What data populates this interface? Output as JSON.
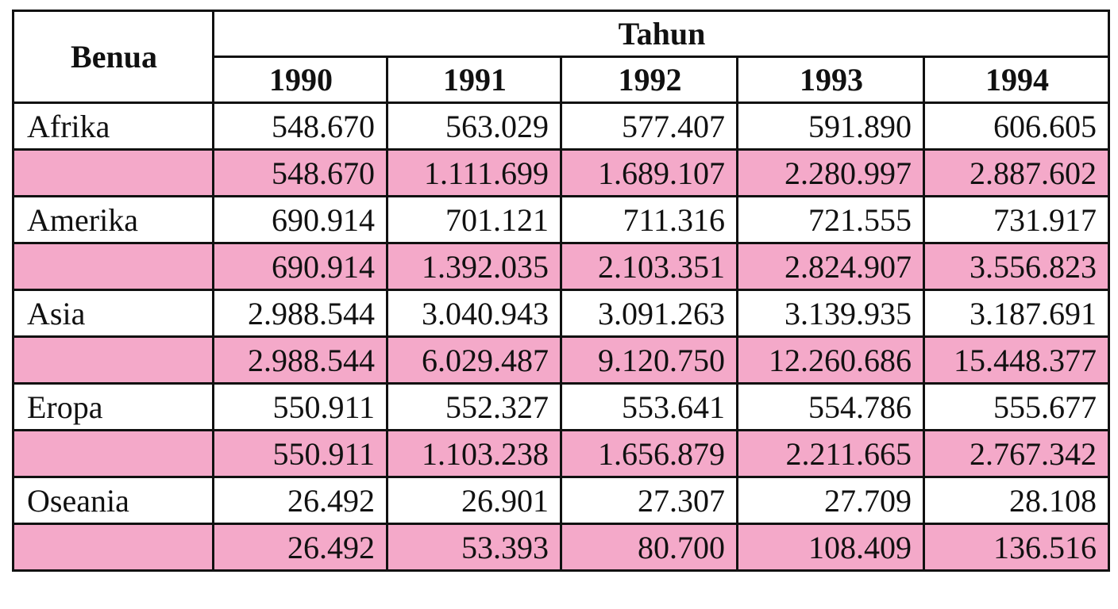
{
  "table": {
    "header": {
      "first": "Benua",
      "group": "Tahun",
      "years": [
        "1990",
        "1991",
        "1992",
        "1993",
        "1994"
      ]
    },
    "rows": [
      {
        "label": "Afrika",
        "values": [
          "548.670",
          "563.029",
          "577.407",
          "591.890",
          "606.605"
        ],
        "shaded_values": [
          "548.670",
          "1.111.699",
          "1.689.107",
          "2.280.997",
          "2.887.602"
        ]
      },
      {
        "label": "Amerika",
        "values": [
          "690.914",
          "701.121",
          "711.316",
          "721.555",
          "731.917"
        ],
        "shaded_values": [
          "690.914",
          "1.392.035",
          "2.103.351",
          "2.824.907",
          "3.556.823"
        ]
      },
      {
        "label": "Asia",
        "values": [
          "2.988.544",
          "3.040.943",
          "3.091.263",
          "3.139.935",
          "3.187.691"
        ],
        "shaded_values": [
          "2.988.544",
          "6.029.487",
          "9.120.750",
          "12.260.686",
          "15.448.377"
        ]
      },
      {
        "label": "Eropa",
        "values": [
          "550.911",
          "552.327",
          "553.641",
          "554.786",
          "555.677"
        ],
        "shaded_values": [
          "550.911",
          "1.103.238",
          "1.656.879",
          "2.211.665",
          "2.767.342"
        ]
      },
      {
        "label": "Oseania",
        "values": [
          "26.492",
          "26.901",
          "27.307",
          "27.709",
          "28.108"
        ],
        "shaded_values": [
          "26.492",
          "53.393",
          "80.700",
          "108.409",
          "136.516"
        ]
      }
    ]
  }
}
